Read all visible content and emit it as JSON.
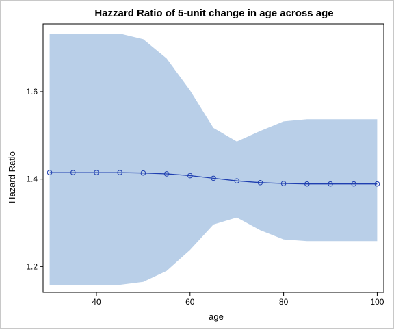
{
  "chart_data": {
    "type": "line",
    "title": "Hazzard Ratio of 5-unit change in age across age",
    "xlabel": "age",
    "ylabel": "Hazard Ratio",
    "xlim": [
      28.6,
      101.4
    ],
    "ylim": [
      1.141,
      1.755
    ],
    "x_ticks": [
      40,
      60,
      80,
      100
    ],
    "y_ticks": [
      1.2,
      1.4,
      1.6
    ],
    "x_tick_labels": [
      "40",
      "60",
      "80",
      "100"
    ],
    "y_tick_labels": [
      "1.2",
      "1.4",
      "1.6"
    ],
    "grid": false,
    "legend": "none",
    "x": [
      30,
      35,
      40,
      45,
      50,
      55,
      60,
      65,
      70,
      75,
      80,
      85,
      90,
      95,
      100
    ],
    "series": [
      {
        "values": [
          1.415,
          1.415,
          1.415,
          1.415,
          1.414,
          1.412,
          1.408,
          1.402,
          1.396,
          1.392,
          1.39,
          1.389,
          1.389,
          1.389,
          1.389
        ],
        "lower": [
          1.158,
          1.158,
          1.158,
          1.158,
          1.165,
          1.19,
          1.238,
          1.296,
          1.312,
          1.283,
          1.262,
          1.258,
          1.258,
          1.258,
          1.258
        ],
        "upper": [
          1.733,
          1.733,
          1.733,
          1.733,
          1.72,
          1.676,
          1.603,
          1.517,
          1.486,
          1.51,
          1.532,
          1.537,
          1.537,
          1.537,
          1.537
        ]
      }
    ],
    "colors": {
      "band": "#b9cfe8",
      "line": "#1f3fb0",
      "frame": "#000000",
      "outer_border": "#c8c8c8"
    }
  }
}
